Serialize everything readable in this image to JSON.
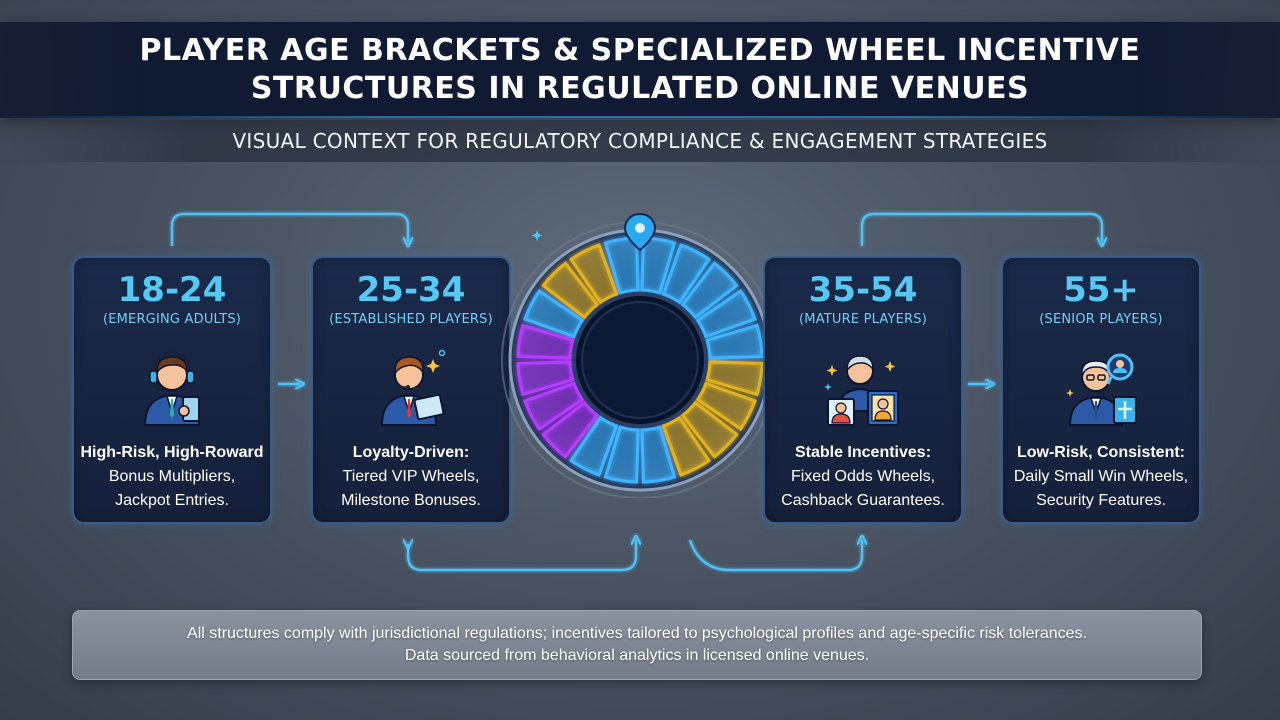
{
  "header": {
    "title_line1": "PLAYER AGE BRACKETS & SPECIALIZED WHEEL INCENTIVE",
    "title_line2": "STRUCTURES IN REGULATED ONLINE VENUES",
    "subtitle": "VISUAL CONTEXT FOR REGULATORY COMPLIANCE & ENGAGEMENT STRATEGIES"
  },
  "cards": [
    {
      "age": "18-24",
      "group": "(EMERGING ADULTS)",
      "icon": "young-gamer-headset-tablet-icon",
      "lines": [
        "High-Risk, High-Roward",
        "Bonus Multipliers,",
        "Jackpot Entries."
      ]
    },
    {
      "age": "25-34",
      "group": "(ESTABLISHED PLAYERS)",
      "icon": "professional-headset-tablet-icon",
      "lines": [
        "Loyalty-Driven:",
        "Tiered VIP Wheels,",
        "Milestone Bonuses."
      ]
    },
    {
      "age": "35-54",
      "group": "(MATURE PLAYERS)",
      "icon": "family-photo-icon",
      "lines": [
        "Stable Incentives:",
        "Fixed Odds Wheels,",
        "Cashback Guarantees."
      ]
    },
    {
      "age": "55+",
      "group": "(SENIOR PLAYERS)",
      "icon": "senior-security-icon",
      "lines": [
        "Low-Risk, Consistent:",
        "Daily Small Win Wheels,",
        "Security Features."
      ]
    }
  ],
  "wheel": {
    "icon": "prize-wheel-icon",
    "segment_colors": [
      "#3fb4ff",
      "#e2b21f",
      "#b43cff"
    ]
  },
  "colors": {
    "accent": "#54c9f5",
    "card_bg": "#17243f",
    "title_bg": "#101a33"
  },
  "footer": {
    "line1": "All structures comply with jurisdictional regulations; incentives tailored to psychological profiles and age-specific risk tolerances.",
    "line2": "Data sourced from behavioral analytics in licensed online venues."
  }
}
